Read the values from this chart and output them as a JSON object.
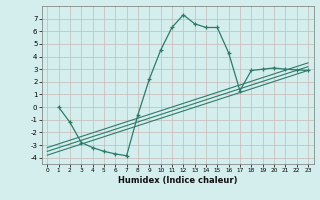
{
  "xlabel": "Humidex (Indice chaleur)",
  "bg_color": "#d4eeed",
  "grid_color": "#c8b8b8",
  "line_color": "#2e7b6b",
  "xlim": [
    -0.5,
    23.5
  ],
  "ylim": [
    -4.5,
    8.0
  ],
  "xticks": [
    0,
    1,
    2,
    3,
    4,
    5,
    6,
    7,
    8,
    9,
    10,
    11,
    12,
    13,
    14,
    15,
    16,
    17,
    18,
    19,
    20,
    21,
    22,
    23
  ],
  "yticks": [
    -4,
    -3,
    -2,
    -1,
    0,
    1,
    2,
    3,
    4,
    5,
    6,
    7
  ],
  "curve_x": [
    1,
    2,
    3,
    4,
    5,
    6,
    7,
    8,
    9,
    10,
    11,
    12,
    13,
    14,
    15,
    16,
    17,
    18,
    19,
    20,
    21,
    22,
    23
  ],
  "curve_y": [
    0.0,
    -1.2,
    -2.8,
    -3.2,
    -3.5,
    -3.7,
    -3.85,
    -0.6,
    2.2,
    4.5,
    6.3,
    7.3,
    6.6,
    6.3,
    6.3,
    4.3,
    1.3,
    2.9,
    3.0,
    3.1,
    3.0,
    2.95,
    2.9
  ],
  "line1_x": [
    0,
    23
  ],
  "line1_y": [
    -3.8,
    2.9
  ],
  "line2_x": [
    0,
    23
  ],
  "line2_y": [
    -3.5,
    3.2
  ],
  "line3_x": [
    0,
    23
  ],
  "line3_y": [
    -3.2,
    3.5
  ]
}
